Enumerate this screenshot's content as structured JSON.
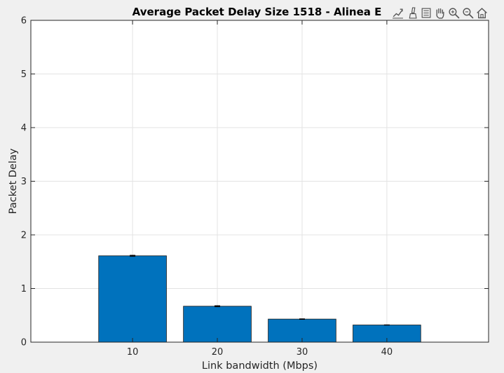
{
  "window": {
    "background": "#f0f0f0"
  },
  "toolbar": {
    "icons": [
      {
        "name": "export-icon"
      },
      {
        "name": "brush-icon"
      },
      {
        "name": "datatip-icon"
      },
      {
        "name": "pan-hand-icon"
      },
      {
        "name": "zoom-in-icon"
      },
      {
        "name": "zoom-out-icon"
      },
      {
        "name": "home-icon"
      }
    ]
  },
  "chart_data": {
    "type": "bar",
    "title": "Average Packet Delay Size 1518 - Alinea E",
    "xlabel": "Link bandwidth (Mbps)",
    "ylabel": "Packet Delay",
    "categories": [
      "10",
      "20",
      "30",
      "40"
    ],
    "x": [
      10,
      20,
      30,
      40
    ],
    "values": [
      1.61,
      0.67,
      0.43,
      0.32
    ],
    "error_bars": [
      0.01,
      0.01,
      0.005,
      0.003
    ],
    "xlim": [
      -2,
      52
    ],
    "ylim": [
      0,
      6
    ],
    "yticks": [
      0,
      1,
      2,
      3,
      4,
      5,
      6
    ],
    "xticks": [
      10,
      20,
      30,
      40
    ],
    "bar_width": 8,
    "grid": true,
    "colors": {
      "bar": "#0072bd",
      "bar_edge": "#1a1a1a",
      "axes_bg": "#ffffff",
      "grid": "#e3e3e3",
      "axis": "#262626"
    }
  }
}
